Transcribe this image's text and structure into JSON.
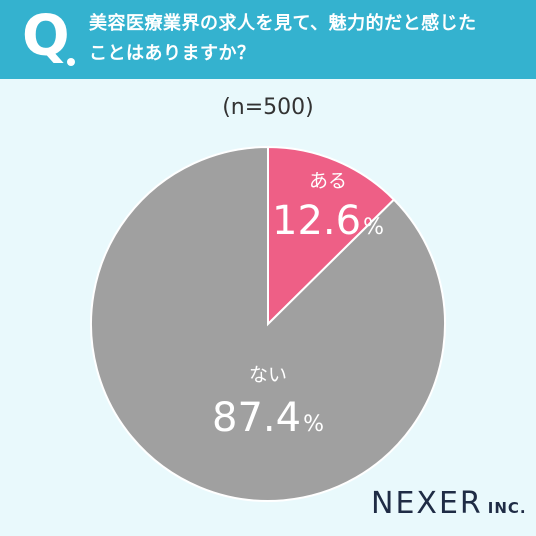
{
  "header": {
    "q_mark": "Q",
    "question": "美容医療業界の求人を見て、魅力的だと感じた\nことはありますか？"
  },
  "sample": "(n=500)",
  "colors": {
    "header_bg": "#34b2cf",
    "background": "#e9f9fc",
    "yes": "#ee5f86",
    "no": "#a0a0a0"
  },
  "chart_data": {
    "type": "pie",
    "start": "12 o'clock",
    "direction": "clockwise",
    "slices": [
      {
        "label": "ある",
        "value": 12.6,
        "display": "12.6",
        "unit": "%",
        "color": "#ee5f86"
      },
      {
        "label": "ない",
        "value": 87.4,
        "display": "87.4",
        "unit": "%",
        "color": "#a0a0a0"
      }
    ]
  },
  "logo": {
    "name": "NEXER",
    "suffix": "INC."
  }
}
